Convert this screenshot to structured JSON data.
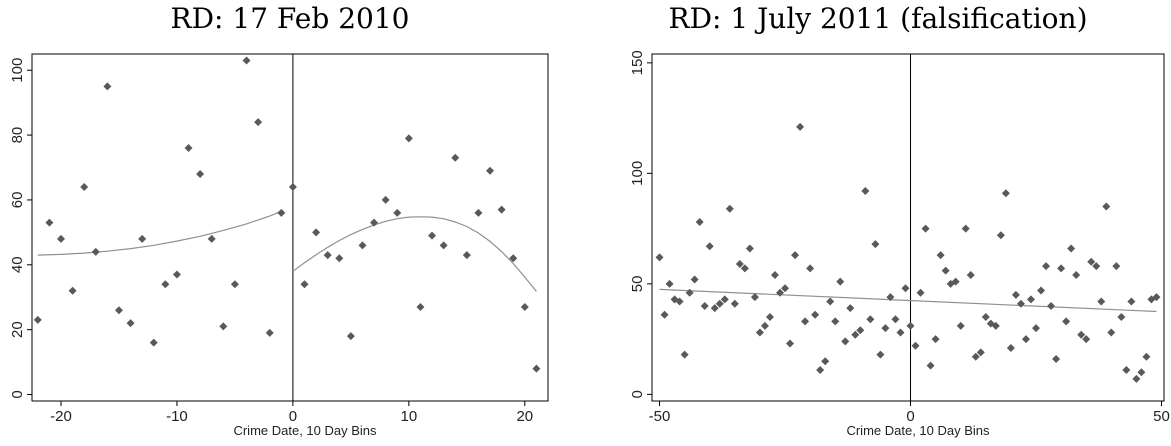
{
  "chart_data": [
    {
      "type": "scatter",
      "title": "RD: 17 Feb 2010",
      "xlabel": "Crime Date, 10 Day Bins",
      "ylabel": "",
      "xlim": [
        -22.5,
        22
      ],
      "ylim": [
        -2,
        105
      ],
      "xticks": [
        -20,
        -10,
        0,
        10,
        20
      ],
      "yticks": [
        0,
        20,
        40,
        60,
        80,
        100
      ],
      "cutoff": 0,
      "grid": false,
      "legend": "none",
      "marker_color": "#595959",
      "line_color": "#909090",
      "points": {
        "x": [
          -22,
          -21,
          -20,
          -19,
          -18,
          -17,
          -16,
          -15,
          -14,
          -13,
          -12,
          -11,
          -10,
          -9,
          -8,
          -7,
          -6,
          -5,
          -4,
          -3,
          -2,
          -1,
          0,
          1,
          2,
          3,
          4,
          5,
          6,
          7,
          8,
          9,
          10,
          11,
          12,
          13,
          14,
          15,
          16,
          17,
          18,
          19,
          20,
          21
        ],
        "y": [
          23,
          53,
          48,
          32,
          64,
          44,
          95,
          26,
          22,
          48,
          16,
          34,
          37,
          76,
          68,
          48,
          21,
          34,
          103,
          84,
          19,
          56,
          64,
          34,
          50,
          43,
          42,
          18,
          46,
          53,
          60,
          56,
          79,
          27,
          49,
          46,
          73,
          43,
          56,
          69,
          57,
          42,
          27,
          8
        ]
      },
      "fit_left": {
        "x": [
          -22,
          -20,
          -18,
          -16,
          -14,
          -12,
          -10,
          -8,
          -6,
          -4,
          -2,
          -1
        ],
        "y": [
          43.0,
          43.2,
          43.6,
          44.2,
          45.0,
          46.0,
          47.3,
          48.8,
          50.6,
          52.6,
          55.0,
          56.5
        ]
      },
      "fit_right": {
        "x": [
          0,
          1,
          2,
          3,
          4,
          5,
          6,
          7,
          8,
          9,
          10,
          11,
          12,
          13,
          14,
          15,
          16,
          17,
          18,
          19,
          20,
          21
        ],
        "y": [
          38,
          40.6,
          43.1,
          45.4,
          47.5,
          49.3,
          50.9,
          52.3,
          53.4,
          54.2,
          54.7,
          54.8,
          54.7,
          54.2,
          53.2,
          51.8,
          49.8,
          47.2,
          44.1,
          40.4,
          36.2,
          31.8
        ]
      }
    },
    {
      "type": "scatter",
      "title": "RD: 1 July 2011 (falsification)",
      "xlabel": "Crime Date, 10 Day Bins",
      "ylabel": "",
      "xlim": [
        -51.5,
        50.5
      ],
      "ylim": [
        -3,
        154
      ],
      "xticks": [
        -50,
        0,
        50
      ],
      "yticks": [
        0,
        50,
        100,
        150
      ],
      "cutoff": 0,
      "grid": false,
      "legend": "none",
      "marker_color": "#595959",
      "line_color": "#909090",
      "points": {
        "x": [
          -50,
          -49,
          -48,
          -47,
          -46,
          -45,
          -44,
          -43,
          -42,
          -41,
          -40,
          -39,
          -38,
          -37,
          -36,
          -35,
          -34,
          -33,
          -32,
          -31,
          -30,
          -29,
          -28,
          -27,
          -26,
          -25,
          -24,
          -23,
          -22,
          -21,
          -20,
          -19,
          -18,
          -17,
          -16,
          -15,
          -14,
          -13,
          -12,
          -11,
          -10,
          -9,
          -8,
          -7,
          -6,
          -5,
          -4,
          -3,
          -2,
          -1,
          0,
          1,
          2,
          3,
          4,
          5,
          6,
          7,
          8,
          9,
          10,
          11,
          12,
          13,
          14,
          15,
          16,
          17,
          18,
          19,
          20,
          21,
          22,
          23,
          24,
          25,
          26,
          27,
          28,
          29,
          30,
          31,
          32,
          33,
          34,
          35,
          36,
          37,
          38,
          39,
          40,
          41,
          42,
          43,
          44,
          45,
          46,
          47,
          48,
          49
        ],
        "y": [
          62,
          36,
          50,
          43,
          42,
          18,
          46,
          52,
          78,
          40,
          67,
          39,
          41,
          43,
          84,
          41,
          59,
          57,
          66,
          44,
          28,
          31,
          35,
          54,
          46,
          48,
          23,
          63,
          121,
          33,
          57,
          36,
          11,
          15,
          42,
          33,
          51,
          24,
          39,
          27,
          29,
          92,
          34,
          68,
          18,
          30,
          44,
          34,
          28,
          48,
          31,
          22,
          46,
          75,
          13,
          25,
          63,
          56,
          50,
          51,
          31,
          75,
          54,
          17,
          19,
          35,
          32,
          31,
          72,
          91,
          21,
          45,
          41,
          25,
          43,
          30,
          47,
          58,
          40,
          16,
          57,
          33,
          66,
          54,
          27,
          25,
          60,
          58,
          42,
          85,
          28,
          58,
          35,
          11,
          42,
          7,
          10,
          17,
          43,
          44
        ]
      },
      "fit": {
        "x": [
          -50,
          49
        ],
        "y": [
          47.5,
          37.5
        ]
      }
    }
  ]
}
